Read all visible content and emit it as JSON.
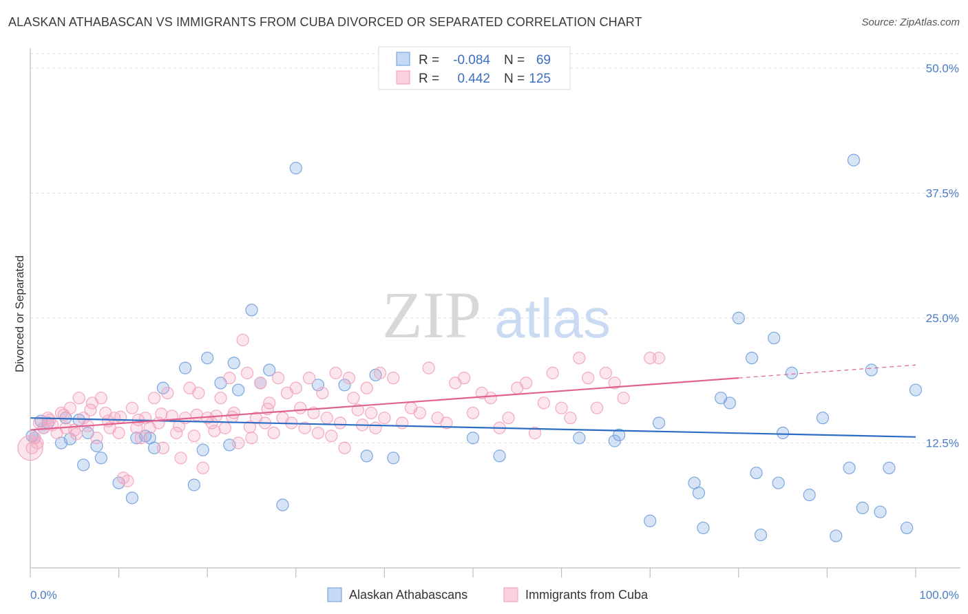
{
  "header": {
    "title": "ALASKAN ATHABASCAN VS IMMIGRANTS FROM CUBA DIVORCED OR SEPARATED CORRELATION CHART",
    "source": "Source: ZipAtlas.com"
  },
  "watermark": {
    "zip": "ZIP",
    "atlas": "atlas"
  },
  "chart_data": {
    "type": "scatter",
    "title": "ALASKAN ATHABASCAN VS IMMIGRANTS FROM CUBA DIVORCED OR SEPARATED CORRELATION CHART",
    "ylabel": "Divorced or Separated",
    "xlabel": "",
    "xlim": [
      0,
      100
    ],
    "ylim": [
      0,
      52
    ],
    "x_tick_labels": {
      "min": "0.0%",
      "max": "100.0%"
    },
    "y_ticks": [
      12.5,
      25.0,
      37.5,
      50.0
    ],
    "y_tick_labels": [
      "12.5%",
      "25.0%",
      "37.5%",
      "50.0%"
    ],
    "grid": true,
    "legend_position": "top-center",
    "stats_legend": [
      {
        "r_label": "R =",
        "r_value": "-0.084",
        "n_label": "N =",
        "n_value": "69"
      },
      {
        "r_label": "R =",
        "r_value": "0.442",
        "n_label": "N =",
        "n_value": "125"
      }
    ],
    "series": [
      {
        "name": "Alaskan Athabascans",
        "color": "#7aa6e0",
        "line_color": "#2b6cc4",
        "trend": {
          "x0": 0,
          "y0": 15.0,
          "x1": 100,
          "y1": 13.1
        },
        "points": [
          [
            0.5,
            13.0
          ],
          [
            1.5,
            14.0
          ],
          [
            2.0,
            14.5
          ],
          [
            3.5,
            12.5
          ],
          [
            4.0,
            15.0
          ],
          [
            4.5,
            12.9
          ],
          [
            5.5,
            14.8
          ],
          [
            6.0,
            10.3
          ],
          [
            6.5,
            13.5
          ],
          [
            7.5,
            12.2
          ],
          [
            8.0,
            11.0
          ],
          [
            10.0,
            8.5
          ],
          [
            11.5,
            7.0
          ],
          [
            12.0,
            13.0
          ],
          [
            13.0,
            13.2
          ],
          [
            14.0,
            12.0
          ],
          [
            15.0,
            18.0
          ],
          [
            17.5,
            20.0
          ],
          [
            18.5,
            8.3
          ],
          [
            19.5,
            11.8
          ],
          [
            20.0,
            21.0
          ],
          [
            21.5,
            18.5
          ],
          [
            22.5,
            12.3
          ],
          [
            23.0,
            20.5
          ],
          [
            23.5,
            17.8
          ],
          [
            25.0,
            25.8
          ],
          [
            26.0,
            18.5
          ],
          [
            27.0,
            19.8
          ],
          [
            28.5,
            6.3
          ],
          [
            30.0,
            40.0
          ],
          [
            32.5,
            18.3
          ],
          [
            35.5,
            18.3
          ],
          [
            38.0,
            11.2
          ],
          [
            39.0,
            19.3
          ],
          [
            41.0,
            11.0
          ],
          [
            50.0,
            13.0
          ],
          [
            53.0,
            11.2
          ],
          [
            62.0,
            13.0
          ],
          [
            66.0,
            12.7
          ],
          [
            66.5,
            13.3
          ],
          [
            70.0,
            4.7
          ],
          [
            71.0,
            14.5
          ],
          [
            75.0,
            8.5
          ],
          [
            75.5,
            7.5
          ],
          [
            76.0,
            4.0
          ],
          [
            78.0,
            17.0
          ],
          [
            79.0,
            16.5
          ],
          [
            80.0,
            25.0
          ],
          [
            81.5,
            21.0
          ],
          [
            82.0,
            9.5
          ],
          [
            82.5,
            3.3
          ],
          [
            84.0,
            23.0
          ],
          [
            84.5,
            8.5
          ],
          [
            85.0,
            13.5
          ],
          [
            86.0,
            19.5
          ],
          [
            88.0,
            7.3
          ],
          [
            89.5,
            15.0
          ],
          [
            91.0,
            3.2
          ],
          [
            92.5,
            10.0
          ],
          [
            93.0,
            40.8
          ],
          [
            94.0,
            6.0
          ],
          [
            95.0,
            19.8
          ],
          [
            96.0,
            5.6
          ],
          [
            97.0,
            10.0
          ],
          [
            99.0,
            4.0
          ],
          [
            100.0,
            17.8
          ],
          [
            0.2,
            13.2
          ],
          [
            1.2,
            14.7
          ],
          [
            13.5,
            13.0
          ]
        ]
      },
      {
        "name": "Immigrants from Cuba",
        "color": "#f4a7c0",
        "line_color": "#e06090",
        "trend": {
          "x0": 0,
          "y0": 13.8,
          "x1": 80,
          "y1": 19.0
        },
        "trend_dashed": {
          "x0": 80,
          "y0": 19.0,
          "x1": 100,
          "y1": 20.3
        },
        "points": [
          [
            0.2,
            12.0
          ],
          [
            0.5,
            13.0
          ],
          [
            1.0,
            14.5
          ],
          [
            1.5,
            14.0
          ],
          [
            2.0,
            15.0
          ],
          [
            2.5,
            14.3
          ],
          [
            3.0,
            13.5
          ],
          [
            3.5,
            15.5
          ],
          [
            4.0,
            14.0
          ],
          [
            4.5,
            16.0
          ],
          [
            5.0,
            13.8
          ],
          [
            5.5,
            17.0
          ],
          [
            6.0,
            15.0
          ],
          [
            6.5,
            14.2
          ],
          [
            7.0,
            16.5
          ],
          [
            7.5,
            13.0
          ],
          [
            8.0,
            17.0
          ],
          [
            8.5,
            15.5
          ],
          [
            9.0,
            14.0
          ],
          [
            9.5,
            15.0
          ],
          [
            10.0,
            13.5
          ],
          [
            10.5,
            9.0
          ],
          [
            11.0,
            8.7
          ],
          [
            11.5,
            16.0
          ],
          [
            12.0,
            14.0
          ],
          [
            12.5,
            13.0
          ],
          [
            13.0,
            15.0
          ],
          [
            13.5,
            14.0
          ],
          [
            14.0,
            17.0
          ],
          [
            14.5,
            14.5
          ],
          [
            15.0,
            12.0
          ],
          [
            15.5,
            17.5
          ],
          [
            16.0,
            15.2
          ],
          [
            16.5,
            13.5
          ],
          [
            17.0,
            11.0
          ],
          [
            17.5,
            15.0
          ],
          [
            18.0,
            18.0
          ],
          [
            18.5,
            13.2
          ],
          [
            19.0,
            17.5
          ],
          [
            19.5,
            10.0
          ],
          [
            20.0,
            15.0
          ],
          [
            20.5,
            14.5
          ],
          [
            21.0,
            15.2
          ],
          [
            21.5,
            17.0
          ],
          [
            22.0,
            14.0
          ],
          [
            22.5,
            19.0
          ],
          [
            23.0,
            15.5
          ],
          [
            23.5,
            12.5
          ],
          [
            24.0,
            22.8
          ],
          [
            24.5,
            19.5
          ],
          [
            25.0,
            13.0
          ],
          [
            25.5,
            15.0
          ],
          [
            26.0,
            18.5
          ],
          [
            26.5,
            14.5
          ],
          [
            27.0,
            16.5
          ],
          [
            27.5,
            13.5
          ],
          [
            28.0,
            19.0
          ],
          [
            28.5,
            15.0
          ],
          [
            29.0,
            17.5
          ],
          [
            29.5,
            14.5
          ],
          [
            30.0,
            18.0
          ],
          [
            30.5,
            16.0
          ],
          [
            31.0,
            14.0
          ],
          [
            31.5,
            19.0
          ],
          [
            32.0,
            15.5
          ],
          [
            32.5,
            13.5
          ],
          [
            33.0,
            17.5
          ],
          [
            33.5,
            15.0
          ],
          [
            34.0,
            13.2
          ],
          [
            34.5,
            19.5
          ],
          [
            35.0,
            14.5
          ],
          [
            35.5,
            12.0
          ],
          [
            36.0,
            19.0
          ],
          [
            36.5,
            17.0
          ],
          [
            37.0,
            15.8
          ],
          [
            37.5,
            14.3
          ],
          [
            38.0,
            18.0
          ],
          [
            38.5,
            15.5
          ],
          [
            39.0,
            14.0
          ],
          [
            39.5,
            19.5
          ],
          [
            40.0,
            15.0
          ],
          [
            41.0,
            19.0
          ],
          [
            42.0,
            14.5
          ],
          [
            43.0,
            16.0
          ],
          [
            44.0,
            15.5
          ],
          [
            45.0,
            20.0
          ],
          [
            46.0,
            15.0
          ],
          [
            47.0,
            14.5
          ],
          [
            48.0,
            18.5
          ],
          [
            49.0,
            19.0
          ],
          [
            50.0,
            15.5
          ],
          [
            51.0,
            17.5
          ],
          [
            52.0,
            17.0
          ],
          [
            53.0,
            14.0
          ],
          [
            54.0,
            15.0
          ],
          [
            55.0,
            18.0
          ],
          [
            56.0,
            18.5
          ],
          [
            57.0,
            13.5
          ],
          [
            58.0,
            16.5
          ],
          [
            59.0,
            19.5
          ],
          [
            60.0,
            16.0
          ],
          [
            61.0,
            15.0
          ],
          [
            62.0,
            21.0
          ],
          [
            63.0,
            19.0
          ],
          [
            64.0,
            16.0
          ],
          [
            65.0,
            19.5
          ],
          [
            66.0,
            18.5
          ],
          [
            67.0,
            17.0
          ],
          [
            70.0,
            21.0
          ],
          [
            71.0,
            21.0
          ],
          [
            0.8,
            12.5
          ],
          [
            2.2,
            14.8
          ],
          [
            3.8,
            15.3
          ],
          [
            5.2,
            13.4
          ],
          [
            6.8,
            15.8
          ],
          [
            8.8,
            14.7
          ],
          [
            10.2,
            15.1
          ],
          [
            12.2,
            14.8
          ],
          [
            14.8,
            15.4
          ],
          [
            16.8,
            14.2
          ],
          [
            18.8,
            15.3
          ],
          [
            20.8,
            13.7
          ],
          [
            22.8,
            15.1
          ],
          [
            24.8,
            14.1
          ],
          [
            26.8,
            15.9
          ]
        ]
      }
    ]
  },
  "legend": {
    "items": [
      {
        "label": "Alaskan Athabascans"
      },
      {
        "label": "Immigrants from Cuba"
      }
    ]
  }
}
